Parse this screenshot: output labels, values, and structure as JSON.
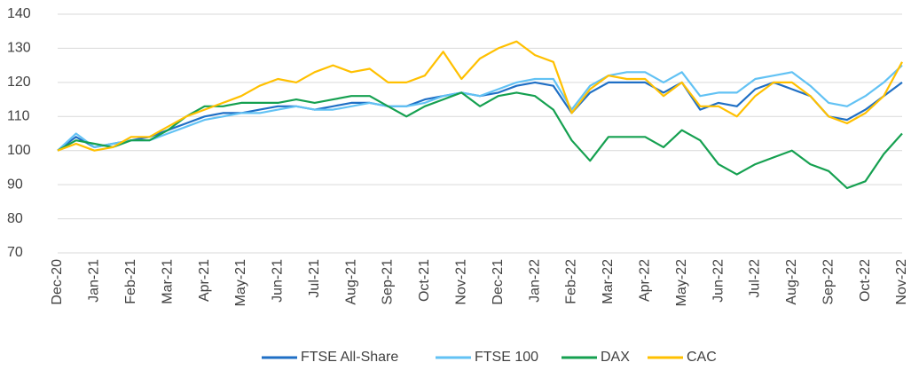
{
  "chart_data": {
    "type": "line",
    "categories": [
      "Dec-20",
      null,
      "Jan-21",
      null,
      "Feb-21",
      null,
      "Mar-21",
      null,
      "Apr-21",
      null,
      "May-21",
      null,
      "Jun-21",
      null,
      "Jul-21",
      null,
      "Aug-21",
      null,
      "Sep-21",
      null,
      "Oct-21",
      null,
      "Nov-21",
      null,
      "Dec-21",
      null,
      "Jan-22",
      null,
      "Feb-22",
      null,
      "Mar-22",
      null,
      "Apr-22",
      null,
      "May-22",
      null,
      "Jun-22",
      null,
      "Jul-22",
      null,
      "Aug-22",
      null,
      "Sep-22",
      null,
      "Oct-22",
      null,
      "Nov-22"
    ],
    "series": [
      {
        "name": "FTSE All-Share",
        "color": "#1f6fc5",
        "values": [
          100,
          104,
          101,
          102,
          103,
          104,
          106,
          108,
          110,
          111,
          111,
          112,
          113,
          113,
          112,
          113,
          114,
          114,
          113,
          113,
          115,
          116,
          117,
          116,
          117,
          119,
          120,
          119,
          111,
          117,
          120,
          120,
          120,
          117,
          120,
          112,
          114,
          113,
          118,
          120,
          118,
          116,
          110,
          109,
          112,
          116,
          120
        ]
      },
      {
        "name": "FTSE 100",
        "color": "#62c2f4",
        "values": [
          100,
          105,
          101,
          102,
          103,
          103,
          105,
          107,
          109,
          110,
          111,
          111,
          112,
          113,
          112,
          112,
          113,
          114,
          113,
          113,
          114,
          116,
          117,
          116,
          118,
          120,
          121,
          121,
          112,
          119,
          122,
          123,
          123,
          120,
          123,
          116,
          117,
          117,
          121,
          122,
          123,
          119,
          114,
          113,
          116,
          120,
          125
        ]
      },
      {
        "name": "DAX",
        "color": "#15a050",
        "values": [
          100,
          103,
          102,
          101,
          103,
          103,
          106,
          110,
          113,
          113,
          114,
          114,
          114,
          115,
          114,
          115,
          116,
          116,
          113,
          110,
          113,
          115,
          117,
          113,
          116,
          117,
          116,
          112,
          103,
          97,
          104,
          104,
          104,
          101,
          106,
          103,
          96,
          93,
          96,
          98,
          100,
          96,
          94,
          89,
          91,
          99,
          105
        ]
      },
      {
        "name": "CAC",
        "color": "#ffc000",
        "values": [
          100,
          102,
          100,
          101,
          104,
          104,
          107,
          110,
          112,
          114,
          116,
          119,
          121,
          120,
          123,
          125,
          123,
          124,
          120,
          120,
          122,
          129,
          121,
          127,
          130,
          132,
          128,
          126,
          111,
          118,
          122,
          121,
          121,
          116,
          120,
          113,
          113,
          110,
          116,
          120,
          120,
          116,
          110,
          108,
          111,
          116,
          126
        ]
      }
    ],
    "ylim": [
      70,
      140
    ],
    "yticks": [
      70,
      80,
      90,
      100,
      110,
      120,
      130,
      140
    ],
    "grid": true,
    "legend": "bottom"
  }
}
